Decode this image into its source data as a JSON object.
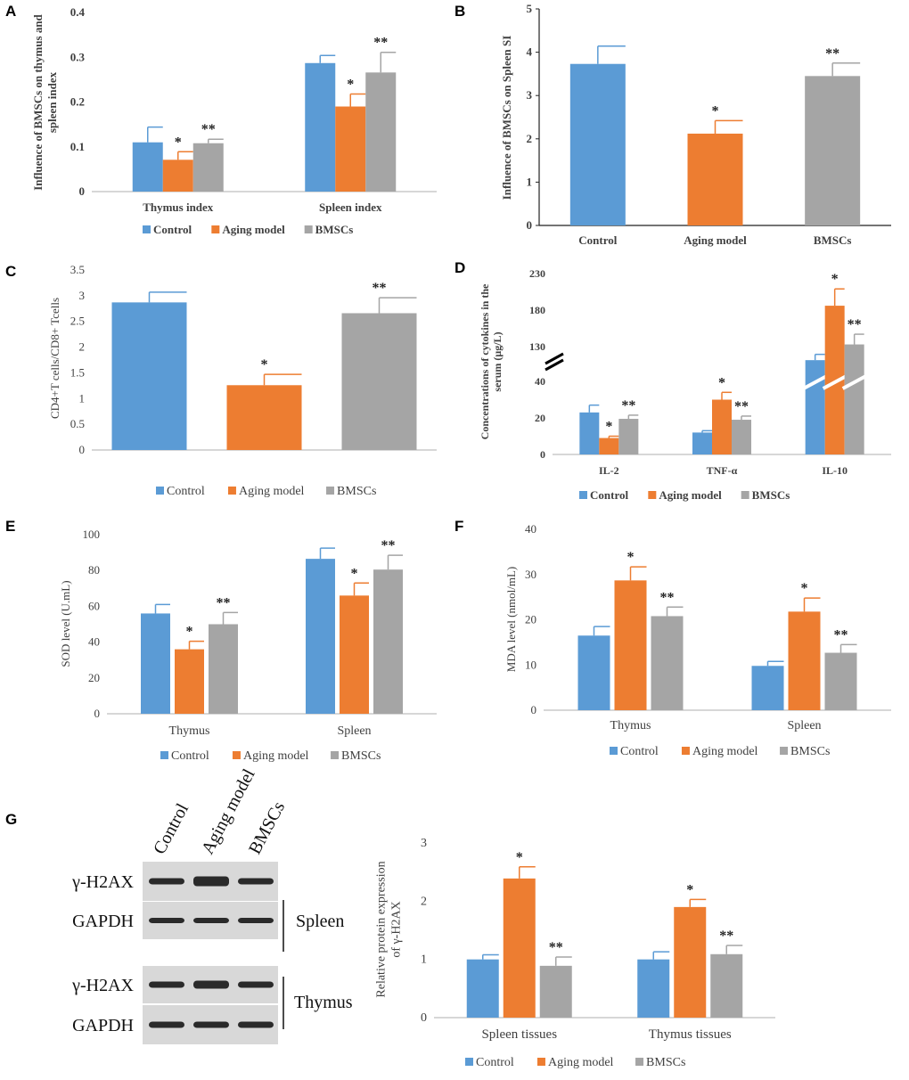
{
  "colors": {
    "control": "#5B9BD5",
    "aging": "#ED7D31",
    "bmsc": "#A5A5A5",
    "axis": "#7f7f7f",
    "text": "#404040"
  },
  "legend": [
    "Control",
    "Aging model",
    "BMSCs"
  ],
  "blot": {
    "columns": [
      "Control",
      "Aging model",
      "BMSCs"
    ],
    "row_labels": [
      "γ-H2AX",
      "GAPDH",
      "γ-H2AX",
      "GAPDH"
    ],
    "group_labels": [
      "Spleen",
      "Thymus"
    ]
  },
  "chart_data": [
    {
      "panel": "A",
      "type": "bar",
      "bold": true,
      "categories": [
        "Thymus index",
        "Spleen index"
      ],
      "series": [
        {
          "name": "Control",
          "values": [
            0.11,
            0.287
          ],
          "errors": [
            0.034,
            0.017
          ],
          "sig": [
            "",
            ""
          ]
        },
        {
          "name": "Aging model",
          "values": [
            0.071,
            0.19
          ],
          "errors": [
            0.018,
            0.028
          ],
          "sig": [
            "*",
            "*"
          ]
        },
        {
          "name": "BMSCs",
          "values": [
            0.108,
            0.266
          ],
          "errors": [
            0.009,
            0.045
          ],
          "sig": [
            "**",
            "**"
          ]
        }
      ],
      "ylabel": "Influence of BMSCs on thymus and spleen index",
      "ylim": [
        0,
        0.4
      ],
      "yticks": [
        "0",
        "0.1",
        "0.2",
        "0.3",
        "0.4"
      ],
      "legend": "bottom"
    },
    {
      "panel": "B",
      "type": "bar",
      "bold": true,
      "categories": [
        "Control",
        "Aging model",
        "BMSCs"
      ],
      "series": [
        {
          "name": "",
          "values": [
            3.73,
            2.12,
            3.45
          ],
          "errors": [
            0.41,
            0.3,
            0.3
          ],
          "sig": [
            "",
            "*",
            "**"
          ]
        }
      ],
      "ylabel": "Influence of BMSCs on Spleen SI",
      "ylim": [
        0,
        5
      ],
      "yticks": [
        "0",
        "1",
        "2",
        "3",
        "4",
        "5"
      ]
    },
    {
      "panel": "C",
      "type": "bar",
      "bold": false,
      "categories": [
        "",
        "",
        ""
      ],
      "series": [
        {
          "name": "",
          "values": [
            2.87,
            1.26,
            2.66
          ],
          "errors": [
            0.2,
            0.21,
            0.3
          ],
          "sig": [
            "",
            "*",
            "**"
          ]
        }
      ],
      "ylabel": "CD4+T cells/CD8+ Tcells",
      "ylim": [
        0,
        3.5
      ],
      "yticks": [
        "0",
        "0.5",
        "1",
        "1.5",
        "2",
        "2.5",
        "3",
        "3.5"
      ],
      "legend": "bottom"
    },
    {
      "panel": "D",
      "type": "bar",
      "bold": true,
      "categories": [
        "IL-2",
        "TNF-α",
        "IL-10"
      ],
      "series": [
        {
          "name": "Control",
          "values": [
            23,
            12,
            95
          ],
          "errors": [
            4,
            1,
            15
          ],
          "sig": [
            "",
            "",
            ""
          ]
        },
        {
          "name": "Aging model",
          "values": [
            9,
            30,
            186
          ],
          "errors": [
            1,
            4,
            23
          ],
          "sig": [
            "*",
            "*",
            "*"
          ]
        },
        {
          "name": "BMSCs",
          "values": [
            19.5,
            19,
            133
          ],
          "errors": [
            2,
            2,
            14
          ],
          "sig": [
            "**",
            "**",
            "**"
          ]
        }
      ],
      "ylabel": "Concentrations of cytokines in the serum (μg/L)",
      "ylim": [
        0,
        230
      ],
      "yticks": [
        "0",
        "20",
        "40",
        "130",
        "180",
        "230"
      ],
      "axis_break": true,
      "legend": "bottom"
    },
    {
      "panel": "E",
      "type": "bar",
      "bold": false,
      "categories": [
        "Thymus",
        "Spleen"
      ],
      "series": [
        {
          "name": "Control",
          "values": [
            56,
            86.5
          ],
          "errors": [
            5,
            6
          ],
          "sig": [
            "",
            ""
          ]
        },
        {
          "name": "Aging model",
          "values": [
            36,
            66
          ],
          "errors": [
            4.5,
            7
          ],
          "sig": [
            "*",
            "*"
          ]
        },
        {
          "name": "BMSCs",
          "values": [
            50,
            80.5
          ],
          "errors": [
            6.5,
            8
          ],
          "sig": [
            "**",
            "**"
          ]
        }
      ],
      "ylabel": "SOD level (U.mL)",
      "ylim": [
        0,
        100
      ],
      "yticks": [
        "0",
        "20",
        "40",
        "60",
        "80",
        "100"
      ],
      "legend": "bottom"
    },
    {
      "panel": "F",
      "type": "bar",
      "bold": false,
      "categories": [
        "Thymus",
        "Spleen"
      ],
      "series": [
        {
          "name": "Control",
          "values": [
            16.5,
            9.8
          ],
          "errors": [
            2,
            1
          ],
          "sig": [
            "",
            ""
          ]
        },
        {
          "name": "Aging model",
          "values": [
            28.7,
            21.8
          ],
          "errors": [
            3,
            3
          ],
          "sig": [
            "*",
            "*"
          ]
        },
        {
          "name": "BMSCs",
          "values": [
            20.8,
            12.7
          ],
          "errors": [
            2,
            1.8
          ],
          "sig": [
            "**",
            "**"
          ]
        }
      ],
      "ylabel": "MDA level (nmol/mL)",
      "ylim": [
        0,
        40
      ],
      "yticks": [
        "0",
        "10",
        "20",
        "30",
        "40"
      ],
      "legend": "bottom"
    },
    {
      "panel": "G",
      "type": "bar",
      "bold": false,
      "categories": [
        "Spleen tissues",
        "Thymus tissues"
      ],
      "series": [
        {
          "name": "Control",
          "values": [
            1.0,
            1.0
          ],
          "errors": [
            0.08,
            0.13
          ],
          "sig": [
            "",
            ""
          ]
        },
        {
          "name": "Aging model",
          "values": [
            2.39,
            1.9
          ],
          "errors": [
            0.2,
            0.13
          ],
          "sig": [
            "*",
            "*"
          ]
        },
        {
          "name": "BMSCs",
          "values": [
            0.89,
            1.09
          ],
          "errors": [
            0.15,
            0.15
          ],
          "sig": [
            "**",
            "**"
          ]
        }
      ],
      "ylabel": "Relative protein expression of γ-H2AX",
      "ylim": [
        0,
        3
      ],
      "yticks": [
        "0",
        "1",
        "2",
        "3"
      ],
      "legend": "bottom"
    }
  ]
}
